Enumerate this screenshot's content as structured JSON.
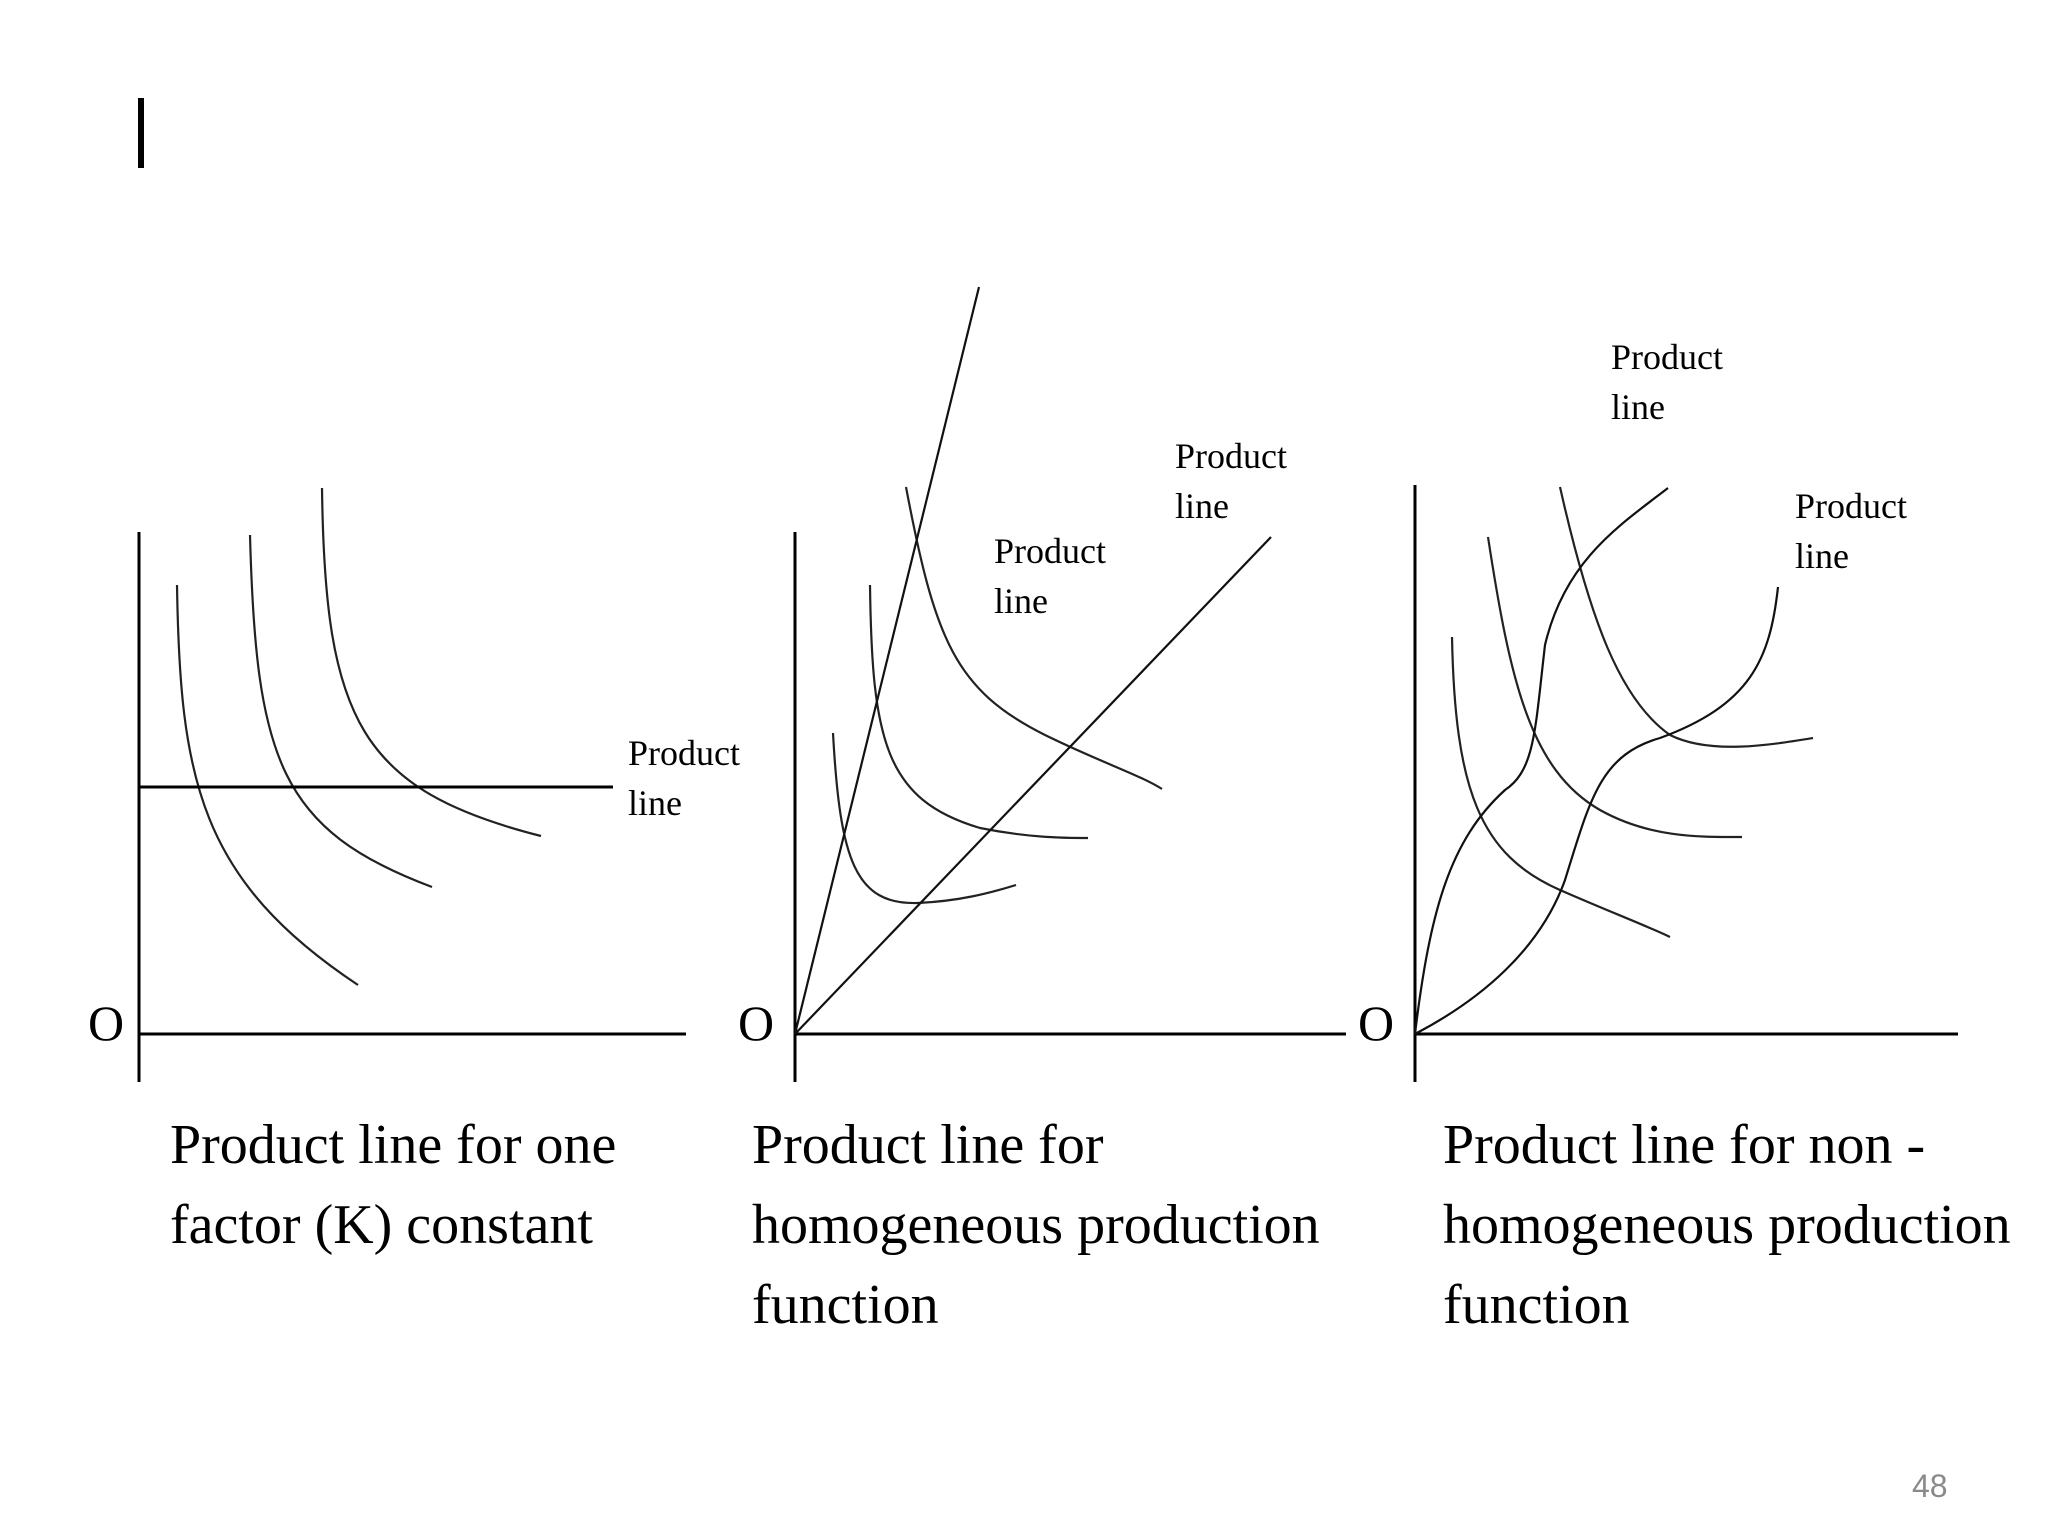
{
  "slide": {
    "page_number": "48"
  },
  "labels": {
    "product_line": [
      "Product",
      "line"
    ],
    "origin": "O"
  },
  "captions": {
    "panel1": [
      "Product line for one",
      "factor (K) constant"
    ],
    "panel2": [
      "Product line for",
      "homogeneous production",
      "function"
    ],
    "panel3": [
      "Product line for non -",
      "homogeneous production",
      "function"
    ]
  }
}
